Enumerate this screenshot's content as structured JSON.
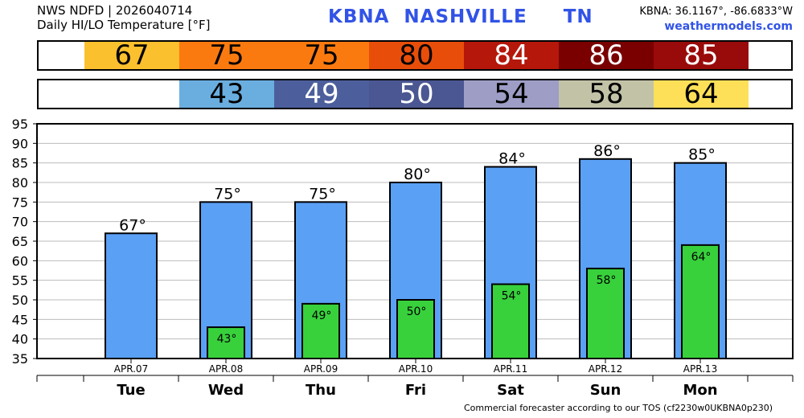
{
  "header": {
    "line1": "NWS NDFD | 2026040714",
    "line2": "Daily HI/LO Temperature [°F]",
    "station": "KBNA",
    "city": "NASHVILLE",
    "state": "TN",
    "coords": "KBNA: 36.1167°, -86.6833°W",
    "site": "weathermodels.com"
  },
  "strip_high": [
    {
      "value": "67",
      "bg": "#fbc02d",
      "fg": "#000000"
    },
    {
      "value": "75",
      "bg": "#fb7a0f",
      "fg": "#000000"
    },
    {
      "value": "75",
      "bg": "#fb7a0f",
      "fg": "#000000"
    },
    {
      "value": "80",
      "bg": "#e84e0a",
      "fg": "#000000"
    },
    {
      "value": "84",
      "bg": "#b5170b",
      "fg": "#ffffff"
    },
    {
      "value": "86",
      "bg": "#7a0000",
      "fg": "#ffffff"
    },
    {
      "value": "85",
      "bg": "#990a0a",
      "fg": "#ffffff"
    }
  ],
  "strip_low": [
    {
      "value": "43",
      "bg": "#6aaee0",
      "fg": "#000000"
    },
    {
      "value": "49",
      "bg": "#4c5f9c",
      "fg": "#ffffff"
    },
    {
      "value": "50",
      "bg": "#4b5793",
      "fg": "#ffffff"
    },
    {
      "value": "54",
      "bg": "#9d9dc6",
      "fg": "#000000"
    },
    {
      "value": "58",
      "bg": "#c2c2a7",
      "fg": "#000000"
    },
    {
      "value": "64",
      "bg": "#fde057",
      "fg": "#000000"
    }
  ],
  "chart_data": {
    "type": "bar",
    "categories": [
      "Tue",
      "Wed",
      "Thu",
      "Fri",
      "Sat",
      "Sun",
      "Mon"
    ],
    "dates": [
      "APR.07",
      "APR.08",
      "APR.09",
      "APR.10",
      "APR.11",
      "APR.12",
      "APR.13"
    ],
    "series": [
      {
        "name": "HI",
        "values": [
          67,
          75,
          75,
          80,
          84,
          86,
          85
        ],
        "labels": [
          "67°",
          "75°",
          "75°",
          "80°",
          "84°",
          "86°",
          "85°"
        ],
        "color": "#5aa0f5"
      },
      {
        "name": "LO",
        "values": [
          null,
          43,
          49,
          50,
          54,
          58,
          64
        ],
        "labels": [
          "",
          "43°",
          "49°",
          "50°",
          "54°",
          "58°",
          "64°"
        ],
        "color": "#38d13c"
      }
    ],
    "ylim": [
      35,
      95
    ],
    "yticks": [
      "35",
      "40",
      "45",
      "50",
      "55",
      "60",
      "65",
      "70",
      "75",
      "80",
      "85",
      "90",
      "95"
    ],
    "grid": true
  },
  "footer": "Commercial forecaster according to our TOS (cf2230w0UKBNA0p230)"
}
